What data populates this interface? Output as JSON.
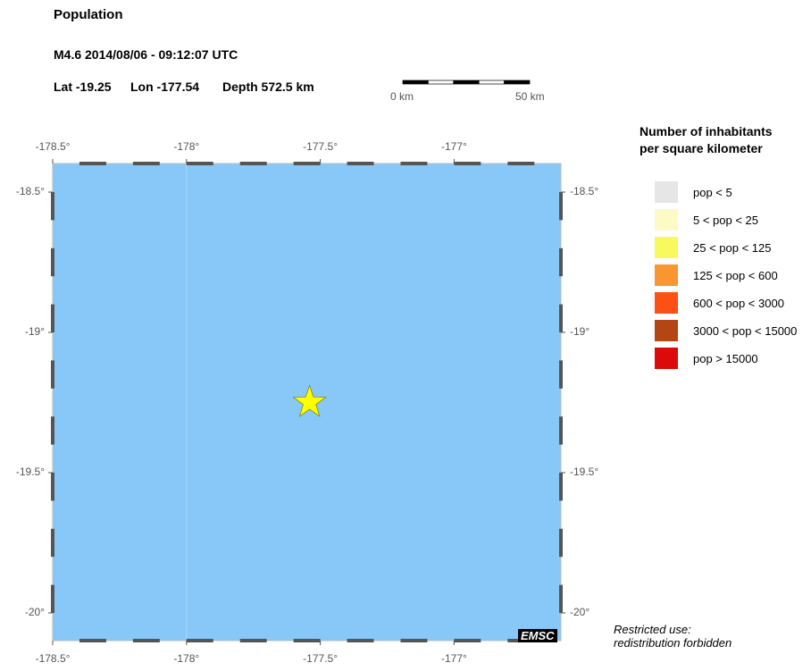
{
  "header": {
    "title": "Population",
    "event": "M4.6  2014/08/06 - 09:12:07 UTC",
    "lat": "Lat -19.25",
    "lon": "Lon -177.54",
    "depth": "Depth 572.5 km"
  },
  "scale_bar": {
    "start_label": "0 km",
    "end_label": "50 km"
  },
  "map": {
    "ocean_color": "#87c8f9",
    "epicenter": {
      "lat": -19.25,
      "lon": -177.54,
      "color": "#ffff00",
      "icon": "star-icon"
    },
    "lon_ticks": [
      "-178.5°",
      "-178°",
      "-177.5°",
      "-177°"
    ],
    "lat_ticks": [
      "-18.5°",
      "-19°",
      "-19.5°",
      "-20°"
    ],
    "logo": "EMSC"
  },
  "legend": {
    "title_line1": "Number of inhabitants",
    "title_line2": "per square kilometer",
    "items": [
      {
        "label": "pop < 5",
        "color": "#e6e6e6"
      },
      {
        "label": "5 < pop < 25",
        "color": "#fcfbc6"
      },
      {
        "label": "25 < pop < 125",
        "color": "#f9f95e"
      },
      {
        "label": "125 < pop < 600",
        "color": "#fa9632"
      },
      {
        "label": "600 < pop < 3000",
        "color": "#fc5014"
      },
      {
        "label": "3000 < pop < 15000",
        "color": "#b44614"
      },
      {
        "label": "pop > 15000",
        "color": "#dc0a0a"
      }
    ]
  },
  "notice": {
    "line1": "Restricted use:",
    "line2": "redistribution forbidden"
  }
}
